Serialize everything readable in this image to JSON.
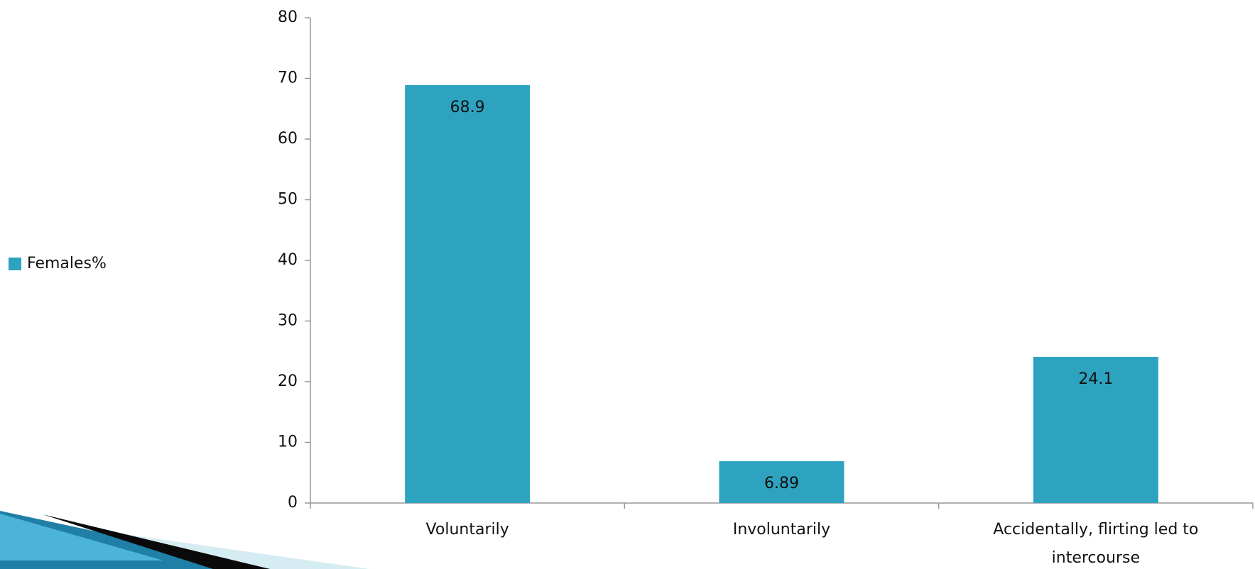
{
  "chart_data": {
    "type": "bar",
    "categories": [
      "Voluntarily",
      "Involuntarily",
      "Accidentally, flirting led to intercourse"
    ],
    "series": [
      {
        "name": "Females%",
        "color": "#2ea3c0",
        "values": [
          68.9,
          6.89,
          24.1
        ]
      }
    ],
    "ylim": [
      0,
      80
    ],
    "yticks": [
      0,
      10,
      20,
      30,
      40,
      50,
      60,
      70,
      80
    ],
    "grid": false,
    "legend": "left"
  }
}
